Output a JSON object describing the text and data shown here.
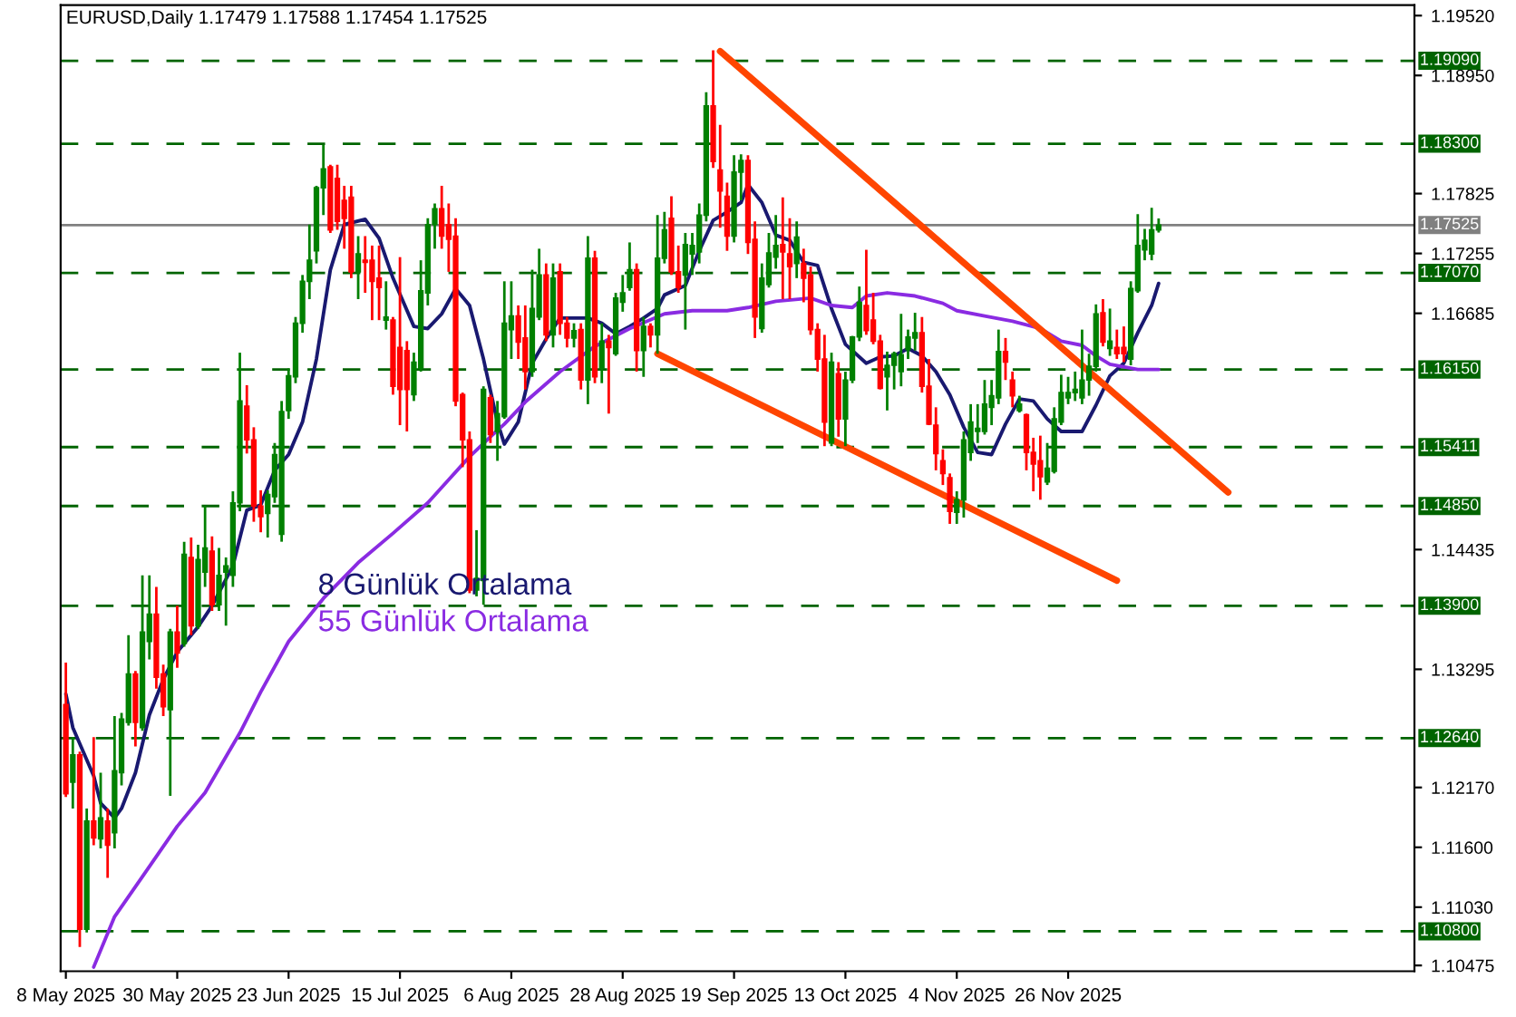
{
  "chart_data": {
    "type": "candlestick",
    "title": "EURUSD,Daily 1.17479 1.17588 1.17454 1.17525",
    "categories": [
      "8 May 2025",
      null,
      null,
      null,
      null,
      null,
      null,
      null,
      null,
      null,
      null,
      null,
      null,
      null,
      null,
      null,
      "30 May 2025",
      null,
      null,
      null,
      null,
      null,
      null,
      null,
      null,
      null,
      null,
      null,
      null,
      null,
      null,
      null,
      "23 Jun 2025",
      null,
      null,
      null,
      null,
      null,
      null,
      null,
      null,
      null,
      null,
      null,
      null,
      null,
      null,
      null,
      "15 Jul 2025",
      null,
      null,
      null,
      null,
      null,
      null,
      null,
      null,
      null,
      null,
      null,
      null,
      null,
      null,
      null,
      "6 Aug 2025",
      null,
      null,
      null,
      null,
      null,
      null,
      null,
      null,
      null,
      null,
      null,
      null,
      null,
      null,
      null,
      "28 Aug 2025",
      null,
      null,
      null,
      null,
      null,
      null,
      null,
      null,
      null,
      null,
      null,
      null,
      null,
      null,
      null,
      "19 Sep 2025",
      null,
      null,
      null,
      null,
      null,
      null,
      null,
      null,
      null,
      null,
      null,
      null,
      null,
      null,
      null,
      "13 Oct 2025",
      null,
      null,
      null,
      null,
      null,
      null,
      null,
      null,
      null,
      null,
      null,
      null,
      null,
      null,
      null,
      "4 Nov 2025",
      null,
      null,
      null,
      null,
      null,
      null,
      null,
      null,
      null,
      null,
      null,
      null,
      null,
      null,
      null,
      "26 Nov 2025",
      null,
      null,
      null,
      null,
      null,
      null,
      null,
      null,
      null,
      null,
      null,
      null,
      null,
      null,
      null,
      null,
      null,
      null,
      null,
      null,
      null,
      null,
      null,
      null,
      null,
      null,
      null,
      null,
      null,
      null,
      null,
      null,
      null,
      null,
      null,
      null,
      null,
      null,
      null,
      null,
      null,
      null,
      null,
      null,
      null,
      null,
      null,
      null,
      null,
      null
    ],
    "ohlc": [
      [
        1.1296,
        1.1336,
        1.1208,
        1.1211
      ],
      [
        1.1222,
        1.1265,
        1.1197,
        1.1248
      ],
      [
        1.1248,
        1.1251,
        1.1065,
        1.1082
      ],
      [
        1.1082,
        1.1197,
        1.1079,
        1.1185
      ],
      [
        1.1185,
        1.1265,
        1.1162,
        1.1169
      ],
      [
        1.1168,
        1.1231,
        1.1159,
        1.1188
      ],
      [
        1.1185,
        1.1197,
        1.1131,
        1.1162
      ],
      [
        1.1174,
        1.1285,
        1.1159,
        1.1233
      ],
      [
        1.1231,
        1.1288,
        1.1219,
        1.1282
      ],
      [
        1.1279,
        1.1362,
        1.1276,
        1.1325
      ],
      [
        1.1325,
        1.1328,
        1.1256,
        1.1279
      ],
      [
        1.1274,
        1.1419,
        1.1271,
        1.1365
      ],
      [
        1.1356,
        1.1419,
        1.1339,
        1.1382
      ],
      [
        1.1382,
        1.1408,
        1.1311,
        1.1322
      ],
      [
        1.1325,
        1.1334,
        1.1285,
        1.1294
      ],
      [
        1.1291,
        1.1368,
        1.1209,
        1.1365
      ],
      [
        1.1365,
        1.139,
        1.1331,
        1.1345
      ],
      [
        1.1354,
        1.1451,
        1.1351,
        1.1439
      ],
      [
        1.1436,
        1.1455,
        1.1362,
        1.1371
      ],
      [
        1.1371,
        1.1448,
        1.1368,
        1.1434
      ],
      [
        1.1422,
        1.1485,
        1.1408,
        1.1445
      ],
      [
        1.1442,
        1.1456,
        1.1385,
        1.1391
      ],
      [
        1.1391,
        1.1445,
        1.1385,
        1.1419
      ],
      [
        1.1422,
        1.1436,
        1.1371,
        1.1428
      ],
      [
        1.1419,
        1.1499,
        1.1408,
        1.1488
      ],
      [
        1.1488,
        1.1631,
        1.148,
        1.1585
      ],
      [
        1.158,
        1.16,
        1.1535,
        1.1548
      ],
      [
        1.1548,
        1.156,
        1.147,
        1.1485
      ],
      [
        1.1485,
        1.15,
        1.146,
        1.1475
      ],
      [
        1.1478,
        1.15,
        1.1455,
        1.1496
      ],
      [
        1.1494,
        1.1545,
        1.1488,
        1.1534
      ],
      [
        1.1458,
        1.1585,
        1.1451,
        1.1575
      ],
      [
        1.1576,
        1.1616,
        1.1568,
        1.1609
      ],
      [
        1.1608,
        1.1665,
        1.1602,
        1.1659
      ],
      [
        1.1659,
        1.1705,
        1.165,
        1.1699
      ],
      [
        1.1699,
        1.1753,
        1.1682,
        1.1719
      ],
      [
        1.1728,
        1.179,
        1.1716,
        1.1788
      ],
      [
        1.1788,
        1.1829,
        1.1762,
        1.1806
      ],
      [
        1.1808,
        1.181,
        1.1745,
        1.1748
      ],
      [
        1.1797,
        1.181,
        1.1748,
        1.1756
      ],
      [
        1.1776,
        1.179,
        1.173,
        1.1759
      ],
      [
        1.1779,
        1.179,
        1.1702,
        1.1708
      ],
      [
        1.1708,
        1.1742,
        1.1682,
        1.1725
      ],
      [
        1.1719,
        1.1742,
        1.1688,
        1.1717
      ],
      [
        1.1719,
        1.1733,
        1.1662,
        1.1699
      ],
      [
        1.1702,
        1.1733,
        1.1662,
        1.1693
      ],
      [
        1.1662,
        1.1699,
        1.1653,
        1.1665
      ],
      [
        1.1662,
        1.1665,
        1.1591,
        1.1599
      ],
      [
        1.1636,
        1.1722,
        1.1562,
        1.1596
      ],
      [
        1.1633,
        1.1642,
        1.1556,
        1.1596
      ],
      [
        1.1591,
        1.1631,
        1.1585,
        1.1622
      ],
      [
        1.1616,
        1.1719,
        1.1613,
        1.169
      ],
      [
        1.1688,
        1.1759,
        1.1676,
        1.1753
      ],
      [
        1.1753,
        1.1773,
        1.173,
        1.1768
      ],
      [
        1.1768,
        1.179,
        1.173,
        1.1742
      ],
      [
        1.1753,
        1.1773,
        1.1708,
        1.1739
      ],
      [
        1.1742,
        1.1759,
        1.158,
        1.1585
      ],
      [
        1.1591,
        1.1593,
        1.1522,
        1.1548
      ],
      [
        1.1548,
        1.1556,
        1.1402,
        1.1405
      ],
      [
        1.1405,
        1.1462,
        1.1399,
        1.1416
      ],
      [
        1.1414,
        1.1599,
        1.1391,
        1.1596
      ],
      [
        1.1588,
        1.1591,
        1.1545,
        1.1553
      ],
      [
        1.1556,
        1.1585,
        1.1528,
        1.1573
      ],
      [
        1.157,
        1.1699,
        1.1568,
        1.1659
      ],
      [
        1.1653,
        1.1699,
        1.1625,
        1.1666
      ],
      [
        1.1666,
        1.1676,
        1.1625,
        1.1641
      ],
      [
        1.1645,
        1.1676,
        1.1596,
        1.1613
      ],
      [
        1.1613,
        1.171,
        1.1608,
        1.1673
      ],
      [
        1.1665,
        1.173,
        1.1662,
        1.1705
      ],
      [
        1.1705,
        1.1716,
        1.1642,
        1.1648
      ],
      [
        1.1648,
        1.1716,
        1.1636,
        1.1702
      ],
      [
        1.1708,
        1.1716,
        1.1648,
        1.1659
      ],
      [
        1.1659,
        1.1665,
        1.1636,
        1.1645
      ],
      [
        1.1645,
        1.1659,
        1.1636,
        1.1652
      ],
      [
        1.1653,
        1.1659,
        1.1596,
        1.1605
      ],
      [
        1.1605,
        1.1742,
        1.1582,
        1.1721
      ],
      [
        1.1721,
        1.1728,
        1.1602,
        1.1608
      ],
      [
        1.1616,
        1.1659,
        1.1602,
        1.1642
      ],
      [
        1.1642,
        1.1648,
        1.1573,
        1.1636
      ],
      [
        1.163,
        1.1688,
        1.1628,
        1.1683
      ],
      [
        1.1679,
        1.1705,
        1.167,
        1.1688
      ],
      [
        1.1693,
        1.1736,
        1.169,
        1.171
      ],
      [
        1.171,
        1.1716,
        1.1613,
        1.1633
      ],
      [
        1.1633,
        1.1665,
        1.1608,
        1.1656
      ],
      [
        1.1656,
        1.1659,
        1.1636,
        1.1648
      ],
      [
        1.1648,
        1.1762,
        1.163,
        1.1721
      ],
      [
        1.1721,
        1.1765,
        1.1716,
        1.1748
      ],
      [
        1.1759,
        1.178,
        1.1705,
        1.1708
      ],
      [
        1.1708,
        1.1733,
        1.1688,
        1.1693
      ],
      [
        1.1705,
        1.1745,
        1.1653,
        1.1734
      ],
      [
        1.1725,
        1.1745,
        1.1705,
        1.1733
      ],
      [
        1.1727,
        1.1773,
        1.1716,
        1.1762
      ],
      [
        1.1762,
        1.1879,
        1.1756,
        1.1866
      ],
      [
        1.1866,
        1.1919,
        1.1807,
        1.1813
      ],
      [
        1.1805,
        1.1848,
        1.175,
        1.1785
      ],
      [
        1.178,
        1.1793,
        1.1728,
        1.1742
      ],
      [
        1.1742,
        1.1819,
        1.1736,
        1.1803
      ],
      [
        1.1803,
        1.182,
        1.1776,
        1.1814
      ],
      [
        1.1814,
        1.1819,
        1.1725,
        1.1736
      ],
      [
        1.1739,
        1.1756,
        1.1645,
        1.1665
      ],
      [
        1.1654,
        1.1716,
        1.165,
        1.1702
      ],
      [
        1.1696,
        1.1745,
        1.1693,
        1.1726
      ],
      [
        1.1722,
        1.1762,
        1.1711,
        1.1733
      ],
      [
        1.1734,
        1.1779,
        1.1682,
        1.1727
      ],
      [
        1.1725,
        1.1759,
        1.1682,
        1.1713
      ],
      [
        1.1716,
        1.1756,
        1.1702,
        1.1741
      ],
      [
        1.1716,
        1.173,
        1.1679,
        1.1702
      ],
      [
        1.1705,
        1.1713,
        1.1648,
        1.1653
      ],
      [
        1.1653,
        1.1659,
        1.1613,
        1.1625
      ],
      [
        1.1625,
        1.1648,
        1.1542,
        1.1565
      ],
      [
        1.1545,
        1.1631,
        1.1542,
        1.1622
      ],
      [
        1.1611,
        1.1622,
        1.1551,
        1.1568
      ],
      [
        1.1568,
        1.1613,
        1.1542,
        1.1605
      ],
      [
        1.1605,
        1.1647,
        1.1602,
        1.1646
      ],
      [
        1.1646,
        1.1694,
        1.1642,
        1.1679
      ],
      [
        1.1676,
        1.1729,
        1.1648,
        1.1652
      ],
      [
        1.1662,
        1.1688,
        1.1639,
        1.1642
      ],
      [
        1.1642,
        1.1648,
        1.1596,
        1.1597
      ],
      [
        1.1608,
        1.1632,
        1.1576,
        1.1619
      ],
      [
        1.1619,
        1.1632,
        1.1596,
        1.163
      ],
      [
        1.1613,
        1.1668,
        1.1599,
        1.1629
      ],
      [
        1.1634,
        1.1653,
        1.1625,
        1.1646
      ],
      [
        1.1645,
        1.1669,
        1.1633,
        1.165
      ],
      [
        1.165,
        1.1665,
        1.1593,
        1.1599
      ],
      [
        1.1599,
        1.1625,
        1.1562,
        1.1563
      ],
      [
        1.1562,
        1.1579,
        1.1519,
        1.1535
      ],
      [
        1.1528,
        1.1539,
        1.1505,
        1.1516
      ],
      [
        1.1512,
        1.1516,
        1.1468,
        1.148
      ],
      [
        1.1479,
        1.1499,
        1.1468,
        1.1491
      ],
      [
        1.1491,
        1.1556,
        1.1474,
        1.1548
      ],
      [
        1.1536,
        1.1582,
        1.1528,
        1.1565
      ],
      [
        1.1556,
        1.1582,
        1.1545,
        1.1559
      ],
      [
        1.1556,
        1.1605,
        1.1553,
        1.1582
      ],
      [
        1.1579,
        1.1605,
        1.1562,
        1.159
      ],
      [
        1.1588,
        1.1653,
        1.1582,
        1.1632
      ],
      [
        1.1632,
        1.1645,
        1.1605,
        1.1622
      ],
      [
        1.1605,
        1.1613,
        1.1579,
        1.159
      ],
      [
        1.1576,
        1.159,
        1.1574,
        1.1582
      ],
      [
        1.1572,
        1.1573,
        1.1519,
        1.1536
      ],
      [
        1.1536,
        1.155,
        1.1499,
        1.1525
      ],
      [
        1.1528,
        1.1552,
        1.1491,
        1.1513
      ],
      [
        1.1508,
        1.1545,
        1.1505,
        1.1521
      ],
      [
        1.1518,
        1.1579,
        1.1516,
        1.1568
      ],
      [
        1.1565,
        1.161,
        1.1562,
        1.1593
      ],
      [
        1.1588,
        1.1608,
        1.1582,
        1.1593
      ],
      [
        1.1593,
        1.1613,
        1.1585,
        1.1596
      ],
      [
        1.1588,
        1.1653,
        1.1582,
        1.1605
      ],
      [
        1.1605,
        1.163,
        1.159,
        1.1618
      ],
      [
        1.1618,
        1.1677,
        1.1613,
        1.1668
      ],
      [
        1.1669,
        1.1682,
        1.1637,
        1.1641
      ],
      [
        1.1635,
        1.1673,
        1.1628,
        1.1642
      ],
      [
        1.1636,
        1.1653,
        1.1625,
        1.163
      ],
      [
        1.1636,
        1.1656,
        1.1622,
        1.163
      ],
      [
        1.1625,
        1.1699,
        1.1619,
        1.1692
      ],
      [
        1.169,
        1.1763,
        1.1688,
        1.1733
      ],
      [
        1.1729,
        1.1749,
        1.1719,
        1.1738
      ],
      [
        1.1725,
        1.1769,
        1.1719,
        1.1748
      ],
      [
        1.17479,
        1.17588,
        1.17454,
        1.17525
      ],
      null,
      null,
      null,
      null,
      null,
      null,
      null,
      null,
      null,
      null,
      null,
      null,
      null,
      null,
      null,
      null,
      null,
      null,
      null,
      null,
      null,
      null,
      null,
      null,
      null,
      null,
      null,
      null,
      null,
      null,
      null,
      null,
      null,
      null,
      null,
      null,
      null
    ],
    "colors": [
      "#ff0000",
      "#008000",
      "#ff0000",
      "#008000",
      "#ff0000",
      "#008000",
      "#ff0000",
      "#008000",
      "#008000",
      "#008000",
      "#ff0000",
      "#008000",
      "#008000",
      "#ff0000",
      "#ff0000",
      "#008000",
      "#ff0000",
      "#008000",
      "#ff0000",
      "#008000",
      "#008000",
      "#ff0000",
      "#008000",
      "#008000",
      "#008000",
      "#008000",
      "#ff0000",
      "#ff0000",
      "#ff0000",
      "#008000",
      "#008000",
      "#008000",
      "#008000",
      "#008000",
      "#008000",
      "#008000",
      "#008000",
      "#008000",
      "#ff0000",
      "#ff0000",
      "#ff0000",
      "#ff0000",
      "#008000",
      "#ff0000",
      "#ff0000",
      "#ff0000",
      "#008000",
      "#ff0000",
      "#ff0000",
      "#ff0000",
      "#008000",
      "#008000",
      "#008000",
      "#008000",
      "#ff0000",
      "#ff0000",
      "#ff0000",
      "#ff0000",
      "#ff0000",
      "#008000",
      "#008000",
      "#ff0000",
      "#008000",
      "#008000",
      "#008000",
      "#ff0000",
      "#ff0000",
      "#008000",
      "#008000",
      "#ff0000",
      "#008000",
      "#ff0000",
      "#ff0000",
      "#008000",
      "#ff0000",
      "#008000",
      "#ff0000",
      "#008000",
      "#ff0000",
      "#008000",
      "#008000",
      "#008000",
      "#ff0000",
      "#008000",
      "#ff0000",
      "#008000",
      "#008000",
      "#ff0000",
      "#ff0000",
      "#008000",
      "#008000",
      "#008000",
      "#008000",
      "#ff0000",
      "#ff0000",
      "#ff0000",
      "#008000",
      "#008000",
      "#ff0000",
      "#ff0000",
      "#008000",
      "#008000",
      "#008000",
      "#ff0000",
      "#ff0000",
      "#008000",
      "#ff0000",
      "#ff0000",
      "#ff0000",
      "#ff0000",
      "#008000",
      "#ff0000",
      "#008000",
      "#008000",
      "#008000",
      "#ff0000",
      "#ff0000",
      "#ff0000",
      "#008000",
      "#008000",
      "#008000",
      "#008000",
      "#008000",
      "#ff0000",
      "#ff0000",
      "#ff0000",
      "#ff0000",
      "#ff0000",
      "#008000",
      "#008000",
      "#008000",
      "#008000",
      "#008000",
      "#008000",
      "#008000",
      "#ff0000",
      "#ff0000",
      "#008000",
      "#ff0000",
      "#ff0000",
      "#ff0000",
      "#008000",
      "#008000",
      "#008000",
      "#008000",
      "#008000",
      "#008000",
      "#008000",
      "#008000",
      "#ff0000",
      "#008000",
      "#ff0000",
      "#ff0000",
      "#008000",
      "#008000",
      "#008000",
      "#008000",
      "#008000",
      null,
      null,
      null,
      null,
      null,
      null,
      null,
      null,
      null,
      null,
      null,
      null,
      null,
      null,
      null,
      null,
      null,
      null,
      null,
      null,
      null,
      null,
      null,
      null,
      null,
      null,
      null,
      null,
      null,
      null,
      null,
      null,
      null,
      null,
      null,
      null,
      null
    ],
    "series": [
      {
        "type": "line",
        "name": "8 Günlük Ortalama",
        "color": "#191970",
        "values": [
          1.1306,
          1.1274,
          null,
          null,
          1.1228,
          1.1202,
          null,
          1.1188,
          1.1197,
          null,
          1.1231,
          null,
          1.1286,
          null,
          1.132,
          null,
          1.1346,
          null,
          null,
          1.137,
          null,
          1.139,
          null,
          null,
          1.1428,
          null,
          1.1481,
          null,
          1.1486,
          null,
          1.1519,
          null,
          1.1534,
          null,
          1.1565,
          null,
          1.1625,
          null,
          1.171,
          null,
          1.1753,
          null,
          null,
          1.1758,
          null,
          1.174,
          null,
          1.1702,
          null,
          null,
          1.1656,
          null,
          1.1654,
          null,
          1.1668,
          null,
          1.1692,
          null,
          1.1676,
          null,
          1.1625,
          null,
          1.1565,
          1.1544,
          null,
          1.1565,
          null,
          1.1621,
          null,
          1.1644,
          null,
          1.1664,
          null,
          null,
          null,
          1.1664,
          null,
          1.1659,
          null,
          1.1649,
          null,
          1.1656,
          null,
          1.1664,
          null,
          1.1673,
          1.1686,
          null,
          null,
          1.1695,
          null,
          1.1728,
          null,
          1.1757,
          null,
          1.1765,
          null,
          1.1774,
          1.1791,
          null,
          1.1774,
          null,
          1.1743,
          null,
          1.1738,
          null,
          1.1717,
          null,
          1.1714,
          null,
          1.1673,
          null,
          1.1639,
          null,
          null,
          1.1621,
          null,
          1.1627,
          null,
          1.1628,
          null,
          1.1635,
          null,
          1.1628,
          null,
          1.1613,
          null,
          1.1591,
          null,
          1.156,
          null,
          1.1536,
          null,
          1.1534,
          null,
          1.1563,
          null,
          1.1587,
          null,
          1.1585,
          null,
          1.1568,
          null,
          1.1556,
          null,
          null,
          1.1556,
          null,
          1.1581,
          null,
          1.1609,
          null,
          1.1621,
          null,
          1.165,
          null,
          1.1676,
          1.1697,
          null,
          null,
          null,
          null,
          null,
          null,
          null,
          null,
          null,
          null,
          null,
          null,
          null,
          null,
          null,
          null,
          null,
          null,
          null,
          null,
          null,
          null,
          null,
          null,
          null,
          null,
          null,
          null,
          null,
          null,
          null,
          null,
          null,
          null,
          null,
          null,
          null
        ]
      },
      {
        "type": "line",
        "name": "55 Günlük Ortalama",
        "color": "#8a2be2",
        "values": [
          null,
          null,
          null,
          null,
          1.1046,
          null,
          null,
          1.1094,
          null,
          null,
          null,
          1.1132,
          null,
          null,
          null,
          null,
          1.118,
          null,
          null,
          null,
          1.1212,
          null,
          null,
          null,
          null,
          1.1269,
          null,
          null,
          1.1308,
          null,
          null,
          null,
          1.1356,
          null,
          null,
          null,
          null,
          1.1397,
          null,
          null,
          null,
          null,
          1.1431,
          null,
          null,
          null,
          null,
          1.1459,
          null,
          null,
          null,
          null,
          1.1488,
          null,
          null,
          1.151,
          null,
          null,
          1.1532,
          null,
          null,
          1.1551,
          null,
          1.1563,
          null,
          null,
          1.1584,
          null,
          null,
          null,
          null,
          1.1613,
          null,
          null,
          null,
          null,
          1.1637,
          null,
          null,
          null,
          null,
          1.1654,
          null,
          null,
          null,
          null,
          1.1668,
          null,
          null,
          null,
          1.1671,
          null,
          null,
          null,
          null,
          1.1671,
          null,
          null,
          1.1674,
          null,
          null,
          null,
          1.168,
          null,
          null,
          null,
          null,
          1.1683,
          null,
          null,
          1.1676,
          null,
          null,
          1.1674,
          null,
          1.1685,
          null,
          null,
          1.1688,
          null,
          null,
          null,
          1.1685,
          null,
          null,
          null,
          1.1678,
          null,
          1.1671,
          null,
          null,
          null,
          1.1666,
          null,
          null,
          null,
          1.1661,
          null,
          null,
          null,
          1.1654,
          null,
          null,
          1.1642,
          null,
          null,
          1.1638,
          null,
          1.1628,
          null,
          1.162,
          null,
          null,
          null,
          1.1615,
          null,
          null,
          1.1615,
          null,
          null,
          null,
          null,
          null,
          null,
          null,
          null,
          null,
          null,
          null,
          null,
          null,
          null,
          null,
          null,
          null,
          null,
          null,
          null,
          null,
          null,
          null,
          null,
          null,
          null,
          null,
          null,
          null,
          null,
          null,
          null,
          null,
          null,
          null,
          null,
          null
        ]
      },
      {
        "type": "line",
        "color": "#ff4500",
        "values": [
          null,
          null,
          null,
          null,
          null,
          null,
          null,
          null,
          null,
          null,
          null,
          null,
          null,
          null,
          null,
          null,
          null,
          null,
          null,
          null,
          null,
          null,
          null,
          null,
          null,
          null,
          null,
          null,
          null,
          null,
          null,
          null,
          null,
          null,
          null,
          null,
          null,
          null,
          null,
          null,
          null,
          null,
          null,
          null,
          null,
          null,
          null,
          null,
          null,
          null,
          null,
          null,
          null,
          null,
          null,
          null,
          null,
          null,
          null,
          null,
          null,
          null,
          null,
          null,
          null,
          null,
          null,
          null,
          null,
          null,
          null,
          null,
          null,
          null,
          null,
          null,
          null,
          null,
          null,
          null,
          null,
          null,
          null,
          null,
          null,
          null,
          null,
          null,
          null,
          null,
          null,
          null,
          null,
          null,
          1.1918,
          null,
          null,
          null,
          null,
          null,
          null,
          null,
          null,
          null,
          null,
          null,
          null,
          null,
          null,
          null,
          null,
          null,
          null,
          null,
          null,
          null,
          null,
          null,
          null,
          null,
          null,
          null,
          null,
          null,
          null,
          null,
          null,
          null,
          null,
          null,
          null,
          null,
          null,
          null,
          null,
          null,
          null,
          null,
          null,
          null,
          null,
          null,
          null,
          null,
          null,
          null,
          null,
          null,
          null,
          null,
          null,
          null,
          null,
          null,
          null,
          null,
          null,
          null,
          null,
          null,
          null,
          null,
          null,
          null,
          null,
          null,
          null,
          1.1498,
          null,
          null,
          null,
          null,
          null,
          null,
          null,
          null,
          null,
          null,
          null,
          null,
          null,
          null,
          null,
          null,
          null,
          null,
          null,
          null,
          null,
          null,
          null,
          null,
          null,
          null,
          null
        ]
      },
      {
        "type": "line",
        "color": "#ff4500",
        "values": [
          null,
          null,
          null,
          null,
          null,
          null,
          null,
          null,
          null,
          null,
          null,
          null,
          null,
          null,
          null,
          null,
          null,
          null,
          null,
          null,
          null,
          null,
          null,
          null,
          null,
          null,
          null,
          null,
          null,
          null,
          null,
          null,
          null,
          null,
          null,
          null,
          null,
          null,
          null,
          null,
          null,
          null,
          null,
          null,
          null,
          null,
          null,
          null,
          null,
          null,
          null,
          null,
          null,
          null,
          null,
          null,
          null,
          null,
          null,
          null,
          null,
          null,
          null,
          null,
          null,
          null,
          null,
          null,
          null,
          null,
          null,
          null,
          null,
          null,
          null,
          null,
          null,
          null,
          null,
          null,
          null,
          null,
          null,
          null,
          null,
          1.163,
          null,
          null,
          null,
          null,
          null,
          null,
          null,
          null,
          null,
          null,
          null,
          null,
          null,
          null,
          null,
          null,
          null,
          null,
          null,
          null,
          null,
          null,
          null,
          null,
          null,
          null,
          null,
          null,
          null,
          null,
          null,
          null,
          null,
          null,
          null,
          null,
          null,
          null,
          null,
          null,
          null,
          null,
          null,
          null,
          null,
          null,
          null,
          null,
          null,
          null,
          null,
          null,
          null,
          null,
          null,
          null,
          null,
          null,
          null,
          null,
          null,
          null,
          null,
          null,
          null,
          1.1414,
          null,
          null,
          null,
          null,
          null,
          null,
          null,
          null,
          null,
          null,
          null,
          null,
          null,
          null,
          null,
          null,
          null,
          null,
          null,
          null,
          null,
          null,
          null,
          null,
          null,
          null,
          null,
          null,
          null,
          null,
          null,
          null,
          null,
          null,
          null,
          null,
          null,
          null,
          null,
          null,
          null,
          null,
          null
        ]
      }
    ],
    "ref_lines": [
      {
        "axis": "y",
        "value": 1.1909,
        "label": "1.19090",
        "color": "#006400",
        "line_style": "dashed"
      },
      {
        "axis": "y",
        "value": 1.183,
        "label": "1.18300",
        "color": "#006400",
        "line_style": "dashed"
      },
      {
        "axis": "y",
        "value": 1.17525,
        "label": "1.17525",
        "color": "#808080",
        "line_style": "solid"
      },
      {
        "axis": "y",
        "value": 1.1707,
        "label": "1.17070",
        "color": "#006400",
        "line_style": "dashed"
      },
      {
        "axis": "y",
        "value": 1.1615,
        "label": "1.16150",
        "color": "#006400",
        "line_style": "dashed"
      },
      {
        "axis": "y",
        "value": 1.15411,
        "label": "1.15411",
        "color": "#006400",
        "line_style": "dashed"
      },
      {
        "axis": "y",
        "value": 1.1485,
        "label": "1.14850",
        "color": "#006400",
        "line_style": "dashed"
      },
      {
        "axis": "y",
        "value": 1.139,
        "label": "1.13900",
        "color": "#006400",
        "line_style": "dashed"
      },
      {
        "axis": "y",
        "value": 1.1264,
        "label": "1.12640",
        "color": "#006400",
        "line_style": "dashed"
      },
      {
        "axis": "y",
        "value": 1.108,
        "label": "1.10800",
        "color": "#006400",
        "line_style": "dashed"
      }
    ],
    "ylim": [
      1.1042,
      1.1962
    ],
    "yticks": [
      {
        "value": 1.1952,
        "label": "1.19520"
      },
      {
        "value": 1.1895,
        "label": "1.18950"
      },
      {
        "value": 1.17825,
        "label": "1.17825"
      },
      {
        "value": 1.17255,
        "label": "1.17255"
      },
      {
        "value": 1.16685,
        "label": "1.16685"
      },
      {
        "value": 1.14435,
        "label": "1.14435"
      },
      {
        "value": 1.13295,
        "label": "1.13295"
      },
      {
        "value": 1.1217,
        "label": "1.12170"
      },
      {
        "value": 1.116,
        "label": "1.11600"
      },
      {
        "value": 1.1103,
        "label": "1.11030"
      },
      {
        "value": 1.10475,
        "label": "1.10475"
      }
    ],
    "grid": false
  }
}
